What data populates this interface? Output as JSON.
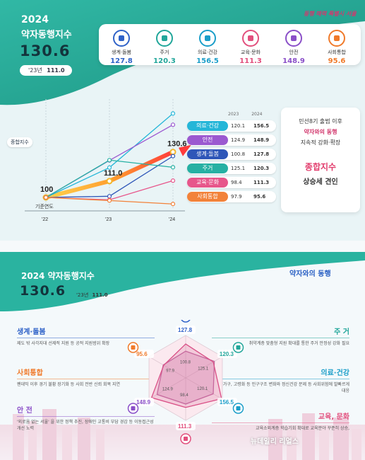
{
  "panel1": {
    "year": "2024",
    "title": "약자동행지수",
    "score": "130.6",
    "prev_label": "'23년",
    "prev_value": "111.0",
    "city_slogan": "동행 매력 특별시 서울"
  },
  "kpis": [
    {
      "label": "생계·돌봄",
      "value": "127.8",
      "color": "#2f62c8",
      "icon": "hands-icon"
    },
    {
      "label": "주거",
      "value": "120.3",
      "color": "#21a69a",
      "icon": "house-icon"
    },
    {
      "label": "의료·건강",
      "value": "156.5",
      "color": "#1b9ec9",
      "icon": "health-icon"
    },
    {
      "label": "교육·문화",
      "value": "111.3",
      "color": "#e24f7d",
      "icon": "book-icon"
    },
    {
      "label": "안전",
      "value": "148.9",
      "color": "#8a4fc8",
      "icon": "shield-icon"
    },
    {
      "label": "사회통합",
      "value": "95.6",
      "color": "#f07a2a",
      "icon": "people-icon"
    }
  ],
  "chart_data": [
    {
      "type": "line",
      "x": [
        "'22",
        "'23",
        "'24"
      ],
      "xlabel": "기준연도",
      "series": [
        {
          "name": "종합지수",
          "values": [
            100,
            111.0,
            130.6
          ],
          "color": "#f3b62a"
        },
        {
          "name": "의료·건강",
          "values": [
            100,
            120.1,
            156.5
          ],
          "color": "#25b6d8"
        },
        {
          "name": "안전",
          "values": [
            100,
            124.9,
            148.9
          ],
          "color": "#9b59d0"
        },
        {
          "name": "생계·돌봄",
          "values": [
            100,
            100.8,
            127.8
          ],
          "color": "#2e56b8"
        },
        {
          "name": "주거",
          "values": [
            100,
            125.1,
            120.3
          ],
          "color": "#26b0a3"
        },
        {
          "name": "교육·문화",
          "values": [
            100,
            98.4,
            111.3
          ],
          "color": "#e7568b"
        },
        {
          "name": "사회통합",
          "values": [
            100,
            97.9,
            95.6
          ],
          "color": "#f2823a"
        }
      ],
      "overall_label": "종합지수",
      "overall_points": [
        "100",
        "111.0",
        "130.6"
      ],
      "table_headers": [
        "2023",
        "2024"
      ]
    },
    {
      "type": "radar",
      "title": "2024 약자동행지수",
      "categories": [
        "생계·돌봄",
        "주거",
        "의료·건강",
        "교육·문화",
        "안전",
        "사회통합"
      ],
      "series": [
        {
          "name": "2024",
          "values": [
            127.8,
            120.3,
            156.5,
            111.3,
            148.9,
            95.6
          ],
          "color": "#d94f86"
        },
        {
          "name": "2023",
          "values": [
            100.8,
            125.1,
            120.1,
            98.4,
            124.9,
            97.9
          ],
          "color": "#c26fa3"
        }
      ]
    }
  ],
  "callout": {
    "line1": "민선8기 출범 이후",
    "line2": "약자와의 동행",
    "line3": "지속적 강화·확장",
    "highlight": "종합지수",
    "line4": "상승세 견인"
  },
  "panel2": {
    "title": "2024 약자동행지수",
    "score": "130.6",
    "prev_label": "'23년",
    "prev_value": "111.0",
    "brand": "약자와의 동행",
    "watermark": "뉴데일리 리얼스",
    "policies": [
      {
        "head": "생계·돌봄",
        "desc": "제도 밖 사각지대 선제적 지원 등 공적 지원범위 확장",
        "color": "#2f62c8"
      },
      {
        "head": "사회통합",
        "desc": "팬데믹 이후 경기 불황 장기화 등 사회 전반 신뢰 회복 지연",
        "color": "#f07a2a"
      },
      {
        "head": "안 전",
        "desc": "'외로움 없는 서울' 을 위한 정책 추진, 장애인 교통비 부담 경감 등 이동접근성 개선 노력",
        "color": "#8a4fc8"
      },
      {
        "head": "주 거",
        "desc": "취약계층 맞춤형 지원 확대를 통한 주거 안정성 강화 필요",
        "color": "#21a69a"
      },
      {
        "head": "의료·건강",
        "desc": "1인가구, 고령화 등 인구구조 변화와 정신건강 문제 등 사회위험에 발빠르게 대응",
        "color": "#1b9ec9"
      },
      {
        "head": "교육, 문화",
        "desc": "교육소외계층 학습기회 확대로 교육분야 꾸준히 상승,",
        "color": "#e24f7d"
      }
    ]
  }
}
